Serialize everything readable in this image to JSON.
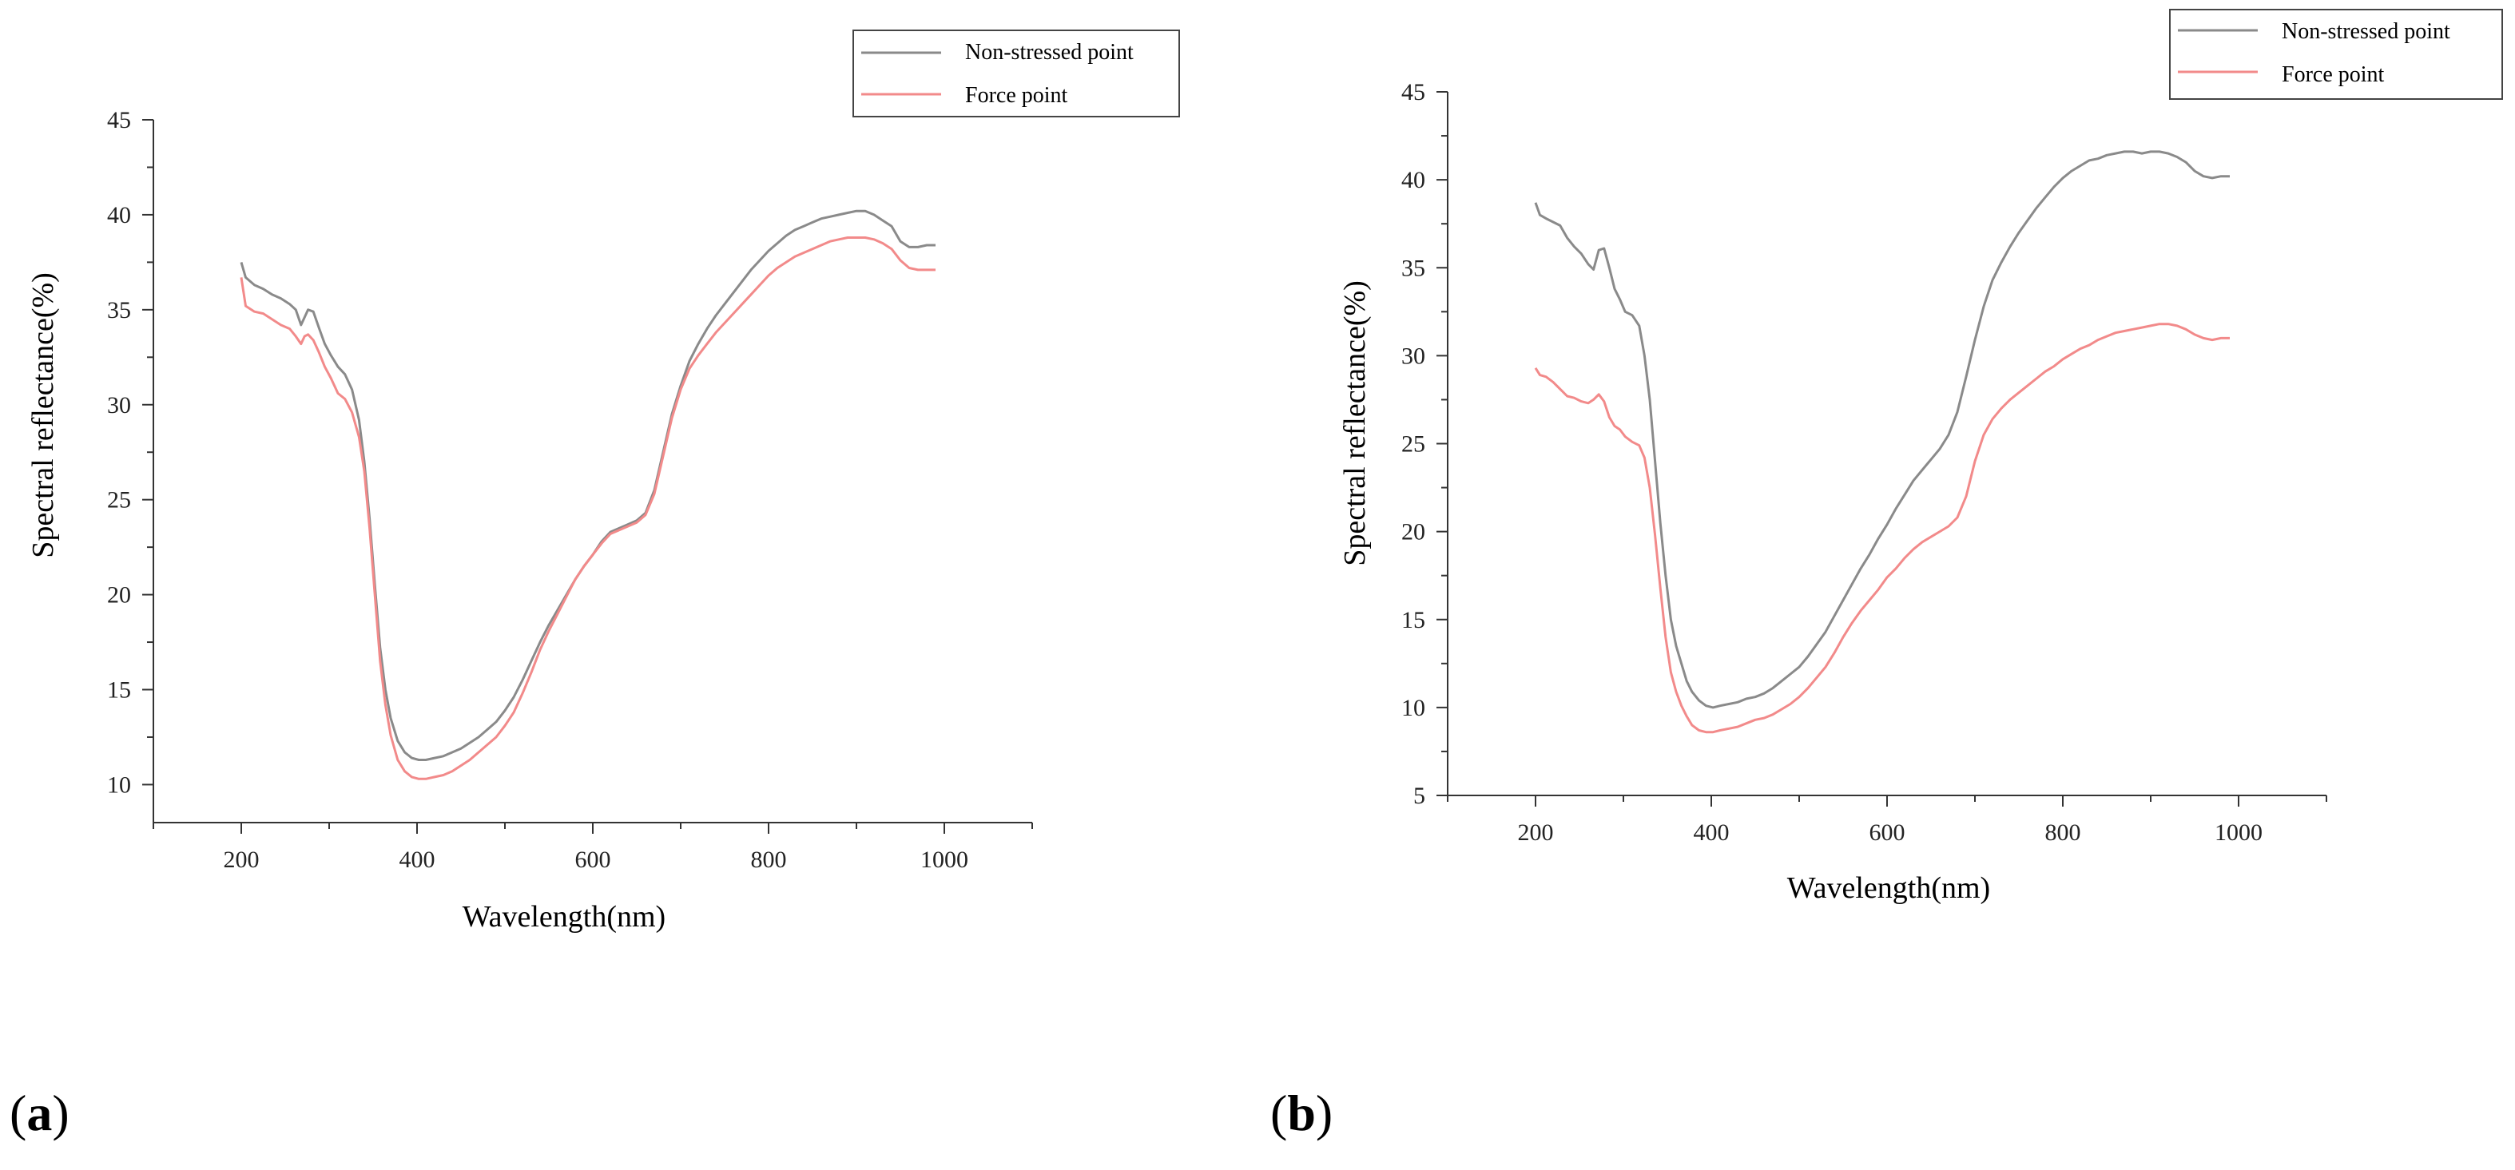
{
  "chart_data": [
    {
      "type": "line",
      "panel_label": "(a)",
      "panel_letter": "a",
      "xlabel": "Wavelength(nm)",
      "ylabel": "Spectral reflectance(%)",
      "xlim": [
        100,
        1100
      ],
      "ylim": [
        8,
        45
      ],
      "xticks": [
        200,
        400,
        600,
        800,
        1000
      ],
      "yticks": [
        10,
        15,
        20,
        25,
        30,
        35,
        40,
        45
      ],
      "legend_position": "top-right",
      "series": [
        {
          "name": "Non-stressed point",
          "color": "#8a8a8a",
          "x": [
            200,
            205,
            215,
            225,
            235,
            245,
            255,
            262,
            268,
            272,
            276,
            282,
            288,
            295,
            302,
            310,
            318,
            326,
            334,
            340,
            346,
            352,
            358,
            364,
            370,
            378,
            386,
            394,
            402,
            410,
            420,
            430,
            440,
            450,
            460,
            470,
            480,
            490,
            500,
            510,
            520,
            530,
            540,
            550,
            560,
            570,
            580,
            590,
            600,
            610,
            620,
            630,
            640,
            650,
            660,
            670,
            680,
            690,
            700,
            710,
            720,
            730,
            740,
            750,
            760,
            770,
            780,
            790,
            800,
            810,
            820,
            830,
            840,
            850,
            860,
            870,
            880,
            890,
            900,
            910,
            920,
            930,
            940,
            950,
            960,
            970,
            980,
            990
          ],
          "y": [
            37.5,
            36.7,
            36.3,
            36.1,
            35.8,
            35.6,
            35.3,
            35.0,
            34.2,
            34.6,
            35.0,
            34.9,
            34.1,
            33.2,
            32.6,
            32.0,
            31.6,
            30.8,
            29.2,
            27.0,
            24.0,
            20.5,
            17.2,
            15.0,
            13.5,
            12.3,
            11.7,
            11.4,
            11.3,
            11.3,
            11.4,
            11.5,
            11.7,
            11.9,
            12.2,
            12.5,
            12.9,
            13.3,
            13.9,
            14.6,
            15.5,
            16.5,
            17.5,
            18.4,
            19.2,
            20.0,
            20.8,
            21.5,
            22.1,
            22.8,
            23.3,
            23.5,
            23.7,
            23.9,
            24.3,
            25.5,
            27.5,
            29.5,
            31.0,
            32.3,
            33.2,
            34.0,
            34.7,
            35.3,
            35.9,
            36.5,
            37.1,
            37.6,
            38.1,
            38.5,
            38.9,
            39.2,
            39.4,
            39.6,
            39.8,
            39.9,
            40.0,
            40.1,
            40.2,
            40.2,
            40.0,
            39.7,
            39.4,
            38.6,
            38.3,
            38.3,
            38.4,
            38.4
          ]
        },
        {
          "name": "Force point",
          "color": "#f28a8a",
          "x": [
            200,
            205,
            215,
            225,
            235,
            245,
            255,
            262,
            268,
            272,
            276,
            282,
            288,
            295,
            302,
            310,
            318,
            326,
            334,
            340,
            346,
            352,
            358,
            364,
            370,
            378,
            386,
            394,
            402,
            410,
            420,
            430,
            440,
            450,
            460,
            470,
            480,
            490,
            500,
            510,
            520,
            530,
            540,
            550,
            560,
            570,
            580,
            590,
            600,
            610,
            620,
            630,
            640,
            650,
            660,
            670,
            680,
            690,
            700,
            710,
            720,
            730,
            740,
            750,
            760,
            770,
            780,
            790,
            800,
            810,
            820,
            830,
            840,
            850,
            860,
            870,
            880,
            890,
            900,
            910,
            920,
            930,
            940,
            950,
            960,
            970,
            980,
            990
          ],
          "y": [
            36.7,
            35.2,
            34.9,
            34.8,
            34.5,
            34.2,
            34.0,
            33.6,
            33.2,
            33.6,
            33.7,
            33.4,
            32.8,
            32.0,
            31.4,
            30.6,
            30.3,
            29.6,
            28.3,
            26.5,
            23.5,
            20.0,
            16.5,
            14.2,
            12.6,
            11.3,
            10.7,
            10.4,
            10.3,
            10.3,
            10.4,
            10.5,
            10.7,
            11.0,
            11.3,
            11.7,
            12.1,
            12.5,
            13.1,
            13.8,
            14.8,
            15.9,
            17.1,
            18.1,
            19.0,
            19.9,
            20.8,
            21.5,
            22.1,
            22.7,
            23.2,
            23.4,
            23.6,
            23.8,
            24.2,
            25.3,
            27.3,
            29.3,
            30.8,
            31.9,
            32.6,
            33.2,
            33.8,
            34.3,
            34.8,
            35.3,
            35.8,
            36.3,
            36.8,
            37.2,
            37.5,
            37.8,
            38.0,
            38.2,
            38.4,
            38.6,
            38.7,
            38.8,
            38.8,
            38.8,
            38.7,
            38.5,
            38.2,
            37.6,
            37.2,
            37.1,
            37.1,
            37.1
          ]
        }
      ]
    },
    {
      "type": "line",
      "panel_label": "(b)",
      "panel_letter": "b",
      "xlabel": "Wavelength(nm)",
      "ylabel": "Spectral reflectance(%)",
      "xlim": [
        100,
        1100
      ],
      "ylim": [
        5,
        45
      ],
      "xticks": [
        200,
        400,
        600,
        800,
        1000
      ],
      "yticks": [
        5,
        10,
        15,
        20,
        25,
        30,
        35,
        40,
        45
      ],
      "legend_position": "top-right",
      "series": [
        {
          "name": "Non-stressed point",
          "color": "#8a8a8a",
          "x": [
            200,
            205,
            212,
            220,
            228,
            236,
            244,
            252,
            260,
            266,
            272,
            278,
            284,
            290,
            296,
            302,
            310,
            318,
            324,
            330,
            336,
            342,
            348,
            354,
            360,
            366,
            372,
            378,
            386,
            394,
            402,
            410,
            420,
            430,
            440,
            450,
            460,
            470,
            480,
            490,
            500,
            510,
            520,
            530,
            540,
            550,
            560,
            570,
            580,
            590,
            600,
            610,
            620,
            630,
            640,
            650,
            660,
            670,
            680,
            690,
            700,
            710,
            720,
            730,
            740,
            750,
            760,
            770,
            780,
            790,
            800,
            810,
            820,
            830,
            840,
            850,
            860,
            870,
            880,
            890,
            900,
            910,
            920,
            930,
            940,
            950,
            960,
            970,
            980,
            990
          ],
          "y": [
            38.7,
            38.0,
            37.8,
            37.6,
            37.4,
            36.7,
            36.2,
            35.8,
            35.2,
            34.9,
            36.0,
            36.1,
            35.0,
            33.8,
            33.2,
            32.5,
            32.3,
            31.7,
            30.0,
            27.5,
            24.0,
            20.5,
            17.5,
            15.0,
            13.5,
            12.5,
            11.5,
            10.9,
            10.4,
            10.1,
            10.0,
            10.1,
            10.2,
            10.3,
            10.5,
            10.6,
            10.8,
            11.1,
            11.5,
            11.9,
            12.3,
            12.9,
            13.6,
            14.3,
            15.2,
            16.1,
            17.0,
            17.9,
            18.7,
            19.6,
            20.4,
            21.3,
            22.1,
            22.9,
            23.5,
            24.1,
            24.7,
            25.5,
            26.8,
            28.8,
            30.9,
            32.8,
            34.3,
            35.3,
            36.2,
            37.0,
            37.7,
            38.4,
            39.0,
            39.6,
            40.1,
            40.5,
            40.8,
            41.1,
            41.2,
            41.4,
            41.5,
            41.6,
            41.6,
            41.5,
            41.6,
            41.6,
            41.5,
            41.3,
            41.0,
            40.5,
            40.2,
            40.1,
            40.2,
            40.2
          ]
        },
        {
          "name": "Force point",
          "color": "#f28a8a",
          "x": [
            200,
            205,
            212,
            220,
            228,
            236,
            244,
            252,
            260,
            266,
            272,
            278,
            284,
            290,
            296,
            302,
            310,
            318,
            324,
            330,
            336,
            342,
            348,
            354,
            360,
            366,
            372,
            378,
            386,
            394,
            402,
            410,
            420,
            430,
            440,
            450,
            460,
            470,
            480,
            490,
            500,
            510,
            520,
            530,
            540,
            550,
            560,
            570,
            580,
            590,
            600,
            610,
            620,
            630,
            640,
            650,
            660,
            670,
            680,
            690,
            700,
            710,
            720,
            730,
            740,
            750,
            760,
            770,
            780,
            790,
            800,
            810,
            820,
            830,
            840,
            850,
            860,
            870,
            880,
            890,
            900,
            910,
            920,
            930,
            940,
            950,
            960,
            970,
            980,
            990
          ],
          "y": [
            29.3,
            28.9,
            28.8,
            28.5,
            28.1,
            27.7,
            27.6,
            27.4,
            27.3,
            27.5,
            27.8,
            27.4,
            26.5,
            26.0,
            25.8,
            25.4,
            25.1,
            24.9,
            24.2,
            22.5,
            19.8,
            16.8,
            14.0,
            12.0,
            10.9,
            10.1,
            9.5,
            9.0,
            8.7,
            8.6,
            8.6,
            8.7,
            8.8,
            8.9,
            9.1,
            9.3,
            9.4,
            9.6,
            9.9,
            10.2,
            10.6,
            11.1,
            11.7,
            12.3,
            13.1,
            14.0,
            14.8,
            15.5,
            16.1,
            16.7,
            17.4,
            17.9,
            18.5,
            19.0,
            19.4,
            19.7,
            20.0,
            20.3,
            20.8,
            22.0,
            24.0,
            25.5,
            26.4,
            27.0,
            27.5,
            27.9,
            28.3,
            28.7,
            29.1,
            29.4,
            29.8,
            30.1,
            30.4,
            30.6,
            30.9,
            31.1,
            31.3,
            31.4,
            31.5,
            31.6,
            31.7,
            31.8,
            31.8,
            31.7,
            31.5,
            31.2,
            31.0,
            30.9,
            31.0,
            31.0
          ]
        }
      ]
    }
  ]
}
